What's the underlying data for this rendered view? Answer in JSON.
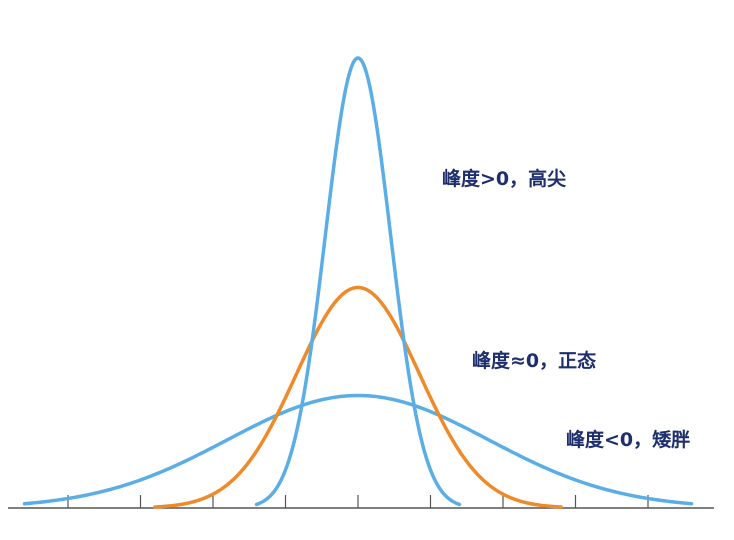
{
  "labels": {
    "high": "峰度>0，高尖",
    "normal": "峰度≈0，正态",
    "flat": "峰度<0，矮胖"
  },
  "colors": {
    "blue": "#5aaee5",
    "orange": "#ee8a2a",
    "axis": "#555555",
    "text": "#1f2f6e"
  },
  "chart_data": {
    "type": "line",
    "xlim": [
      -5,
      5
    ],
    "ticks": [
      -4,
      -3,
      -2,
      -1,
      0,
      1,
      2,
      3,
      4
    ],
    "series": [
      {
        "id": "high",
        "color": "blue",
        "peak": 1.0,
        "sigma": 0.45,
        "xrange": [
          -1.4,
          1.4
        ]
      },
      {
        "id": "normal",
        "color": "orange",
        "peak": 0.49,
        "sigma": 0.85,
        "xrange": [
          -2.8,
          2.8
        ]
      },
      {
        "id": "flat",
        "color": "blue",
        "peak": 0.25,
        "sigma": 1.8,
        "xrange": [
          -4.6,
          4.6
        ]
      }
    ]
  }
}
